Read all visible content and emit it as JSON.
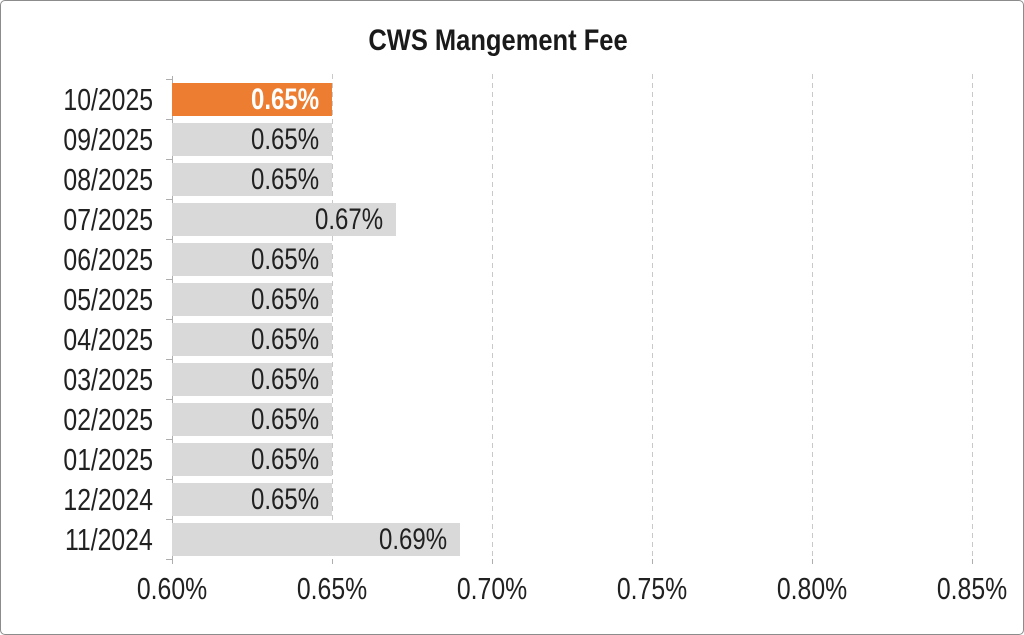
{
  "window": {
    "background": "#FFFFFF",
    "border_color": "#8C8C8C"
  },
  "chart_data": {
    "type": "bar",
    "orientation": "horizontal",
    "title": "CWS Mangement Fee",
    "categories": [
      "10/2025",
      "09/2025",
      "08/2025",
      "07/2025",
      "06/2025",
      "05/2025",
      "04/2025",
      "03/2025",
      "02/2025",
      "01/2025",
      "12/2024",
      "11/2024"
    ],
    "values": [
      0.65,
      0.65,
      0.65,
      0.67,
      0.65,
      0.65,
      0.65,
      0.65,
      0.65,
      0.65,
      0.65,
      0.69
    ],
    "value_labels": [
      "0.65%",
      "0.65%",
      "0.65%",
      "0.67%",
      "0.65%",
      "0.65%",
      "0.65%",
      "0.65%",
      "0.65%",
      "0.65%",
      "0.65%",
      "0.69%"
    ],
    "highlight_index": 0,
    "x_axis": {
      "min": 0.6,
      "max": 0.85,
      "step": 0.05,
      "tick_labels": [
        "0.60%",
        "0.65%",
        "0.70%",
        "0.75%",
        "0.80%",
        "0.85%"
      ]
    },
    "grid": "dashed-vertical",
    "legend": "none",
    "colors": {
      "bar": "#D9D9D9",
      "highlight_bar": "#ED7D31",
      "bar_label": "#212121",
      "highlight_label": "#FFFFFF",
      "axis_line": "#AEAEAE",
      "gridline": "#C9C9C9",
      "text": "#212121",
      "title": "#1A1A1A"
    }
  }
}
